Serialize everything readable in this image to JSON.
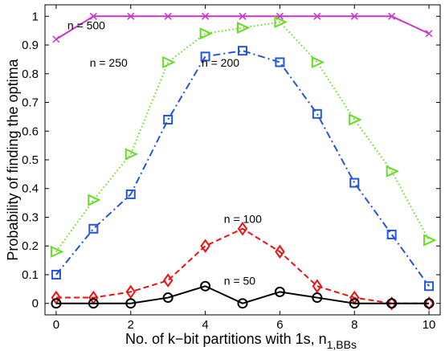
{
  "chart_data": {
    "type": "line",
    "title": "",
    "xlabel": "No. of k−bit partitions with 1s, n",
    "xlabel_subscript": "1,BBs",
    "ylabel": "Probability of finding the optima",
    "xlim": [
      -0.3,
      10.3
    ],
    "ylim": [
      -0.04,
      1.04
    ],
    "xticks": [
      0,
      2,
      4,
      6,
      8,
      10
    ],
    "yticks": [
      0,
      0.1,
      0.2,
      0.3,
      0.4,
      0.5,
      0.6,
      0.7,
      0.8,
      0.9,
      1
    ],
    "grid": false,
    "legend": "none",
    "x": [
      0,
      1,
      2,
      3,
      4,
      5,
      6,
      7,
      8,
      9,
      10
    ],
    "series": [
      {
        "name": "n = 500",
        "color": "#cc33cc",
        "marker": "x",
        "dash": "solid",
        "values": [
          0.92,
          1,
          1,
          1,
          1,
          1,
          1,
          1,
          1,
          1,
          0.94
        ]
      },
      {
        "name": "n = 250",
        "color": "#66dd22",
        "marker": "triangle-right",
        "dash": "dotted",
        "values": [
          0.18,
          0.36,
          0.52,
          0.84,
          0.94,
          0.96,
          0.98,
          0.84,
          0.64,
          0.46,
          0.22
        ]
      },
      {
        "name": "n = 200",
        "color": "#2255dd",
        "marker": "square",
        "dash": "dashdot",
        "values": [
          0.1,
          0.26,
          0.38,
          0.64,
          0.86,
          0.88,
          0.84,
          0.66,
          0.42,
          0.24,
          0.06
        ]
      },
      {
        "name": "n = 100",
        "color": "#ee1111",
        "marker": "diamond",
        "dash": "dashed",
        "values": [
          0.02,
          0.02,
          0.04,
          0.08,
          0.2,
          0.26,
          0.18,
          0.06,
          0.02,
          0,
          0
        ]
      },
      {
        "name": "n = 50",
        "color": "#000000",
        "marker": "circle",
        "dash": "solid",
        "values": [
          0,
          0,
          0,
          0.02,
          0.06,
          0,
          0.04,
          0.02,
          0,
          0,
          0
        ]
      }
    ],
    "annotations": [
      {
        "text": "n = 500",
        "x": 0.3,
        "y": 0.955
      },
      {
        "text": "n = 250",
        "x": 0.9,
        "y": 0.825
      },
      {
        "text": "n = 200",
        "x": 3.9,
        "y": 0.825
      },
      {
        "text": "n = 100",
        "x": 4.5,
        "y": 0.28
      },
      {
        "text": "n = 50",
        "x": 4.5,
        "y": 0.065
      }
    ]
  }
}
